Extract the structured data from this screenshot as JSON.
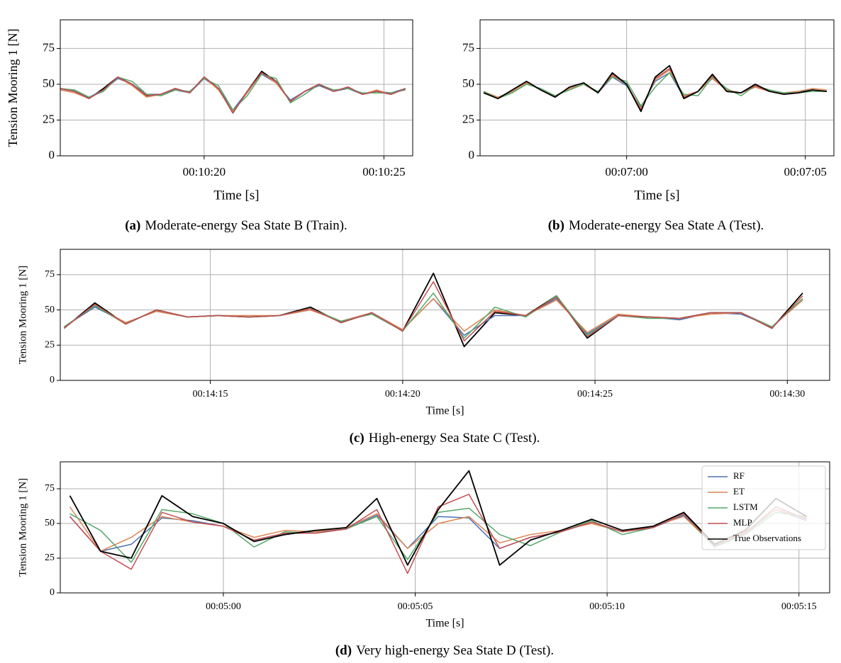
{
  "chart_data": [
    {
      "type": "line",
      "ylabel": "Tension Mooring 1 [N]",
      "xlabel": "Time [s]",
      "caption_label": "(a)",
      "caption": "Moderate-energy Sea State B (Train).",
      "xlim": [
        616,
        625.8
      ],
      "ylim": [
        0,
        95
      ],
      "xticks": [
        {
          "value": 620,
          "label": "00:10:20"
        },
        {
          "value": 625,
          "label": "00:10:25"
        }
      ],
      "yticks": [
        0,
        25,
        50,
        75
      ],
      "grid": true,
      "x": [
        616,
        616.4,
        616.8,
        617.2,
        617.6,
        618,
        618.4,
        618.8,
        619.2,
        619.6,
        620,
        620.4,
        620.8,
        621.2,
        621.6,
        622,
        622.4,
        622.8,
        623.2,
        623.6,
        624,
        624.4,
        624.8,
        625.2,
        625.6
      ],
      "series": [
        {
          "color": "#000000",
          "values": [
            47,
            45,
            40,
            47,
            55,
            50,
            42,
            43,
            47,
            44,
            55,
            47,
            30,
            45,
            59,
            52,
            38,
            45,
            50,
            45,
            48,
            43,
            45,
            43,
            47
          ]
        },
        {
          "color": "#4c72b0",
          "values": [
            47,
            45,
            41,
            46,
            54,
            50,
            43,
            43,
            46,
            44,
            54,
            47,
            32,
            45,
            57,
            51,
            39,
            45,
            49,
            45,
            47,
            43,
            45,
            44,
            47
          ]
        },
        {
          "color": "#dd8452",
          "values": [
            46,
            44,
            40,
            46,
            55,
            49,
            41,
            43,
            47,
            44,
            55,
            46,
            31,
            44,
            58,
            51,
            38,
            45,
            50,
            45,
            48,
            43,
            46,
            43,
            47
          ]
        },
        {
          "color": "#55a868",
          "values": [
            47,
            46,
            41,
            45,
            55,
            52,
            43,
            42,
            46,
            45,
            54,
            49,
            32,
            42,
            57,
            54,
            37,
            43,
            50,
            46,
            47,
            44,
            44,
            44,
            46
          ]
        },
        {
          "color": "#c44e52",
          "values": [
            47,
            45,
            40,
            46,
            55,
            50,
            42,
            43,
            47,
            44,
            55,
            47,
            30,
            45,
            58,
            52,
            38,
            45,
            50,
            45,
            48,
            43,
            45,
            43,
            47
          ]
        }
      ]
    },
    {
      "type": "line",
      "xlabel": "Time [s]",
      "caption_label": "(b)",
      "caption": "Moderate-energy Sea State A (Test).",
      "xlim": [
        415.9,
        425.8
      ],
      "ylim": [
        0,
        95
      ],
      "xticks": [
        {
          "value": 420,
          "label": "00:07:00"
        },
        {
          "value": 425,
          "label": "00:07:05"
        }
      ],
      "yticks": [
        0,
        25,
        50,
        75
      ],
      "grid": true,
      "x": [
        416,
        416.4,
        416.8,
        417.2,
        417.6,
        418,
        418.4,
        418.8,
        419.2,
        419.6,
        420,
        420.4,
        420.8,
        421.2,
        421.6,
        422,
        422.4,
        422.8,
        423.2,
        423.6,
        424,
        424.4,
        424.8,
        425.2,
        425.6
      ],
      "series": [
        {
          "color": "#4c72b0",
          "values": [
            44,
            40,
            45,
            51,
            46,
            42,
            47,
            50,
            44,
            55,
            49,
            34,
            52,
            58,
            41,
            45,
            54,
            46,
            44,
            48,
            45,
            44,
            45,
            46,
            45
          ]
        },
        {
          "color": "#dd8452",
          "values": [
            45,
            41,
            45,
            51,
            46,
            42,
            47,
            50,
            44,
            56,
            50,
            33,
            53,
            60,
            42,
            45,
            54,
            46,
            44,
            48,
            45,
            44,
            45,
            47,
            46
          ]
        },
        {
          "color": "#55a868",
          "values": [
            45,
            40,
            44,
            50,
            47,
            42,
            46,
            50,
            45,
            55,
            52,
            35,
            48,
            58,
            43,
            42,
            55,
            47,
            42,
            49,
            46,
            44,
            44,
            45,
            45
          ]
        },
        {
          "color": "#c44e52",
          "values": [
            44,
            40,
            46,
            52,
            46,
            41,
            48,
            51,
            44,
            57,
            50,
            32,
            54,
            61,
            41,
            45,
            56,
            45,
            44,
            49,
            45,
            43,
            44,
            46,
            45
          ]
        },
        {
          "color": "#000000",
          "values": [
            44,
            40,
            46,
            52,
            46,
            41,
            48,
            51,
            44,
            58,
            50,
            31,
            55,
            63,
            40,
            45,
            57,
            45,
            44,
            50,
            45,
            43,
            44,
            46,
            45
          ]
        }
      ]
    },
    {
      "type": "line",
      "ylabel": "Tension Mooring 1 [N]",
      "xlabel": "Time [s]",
      "caption_label": "(c)",
      "caption": "High-energy Sea State C (Test).",
      "xlim": [
        851.1,
        871.1
      ],
      "ylim": [
        0,
        93
      ],
      "xticks": [
        {
          "value": 855,
          "label": "00:14:15"
        },
        {
          "value": 860,
          "label": "00:14:20"
        },
        {
          "value": 865,
          "label": "00:14:25"
        },
        {
          "value": 870,
          "label": "00:14:30"
        }
      ],
      "yticks": [
        0,
        25,
        50,
        75
      ],
      "grid": true,
      "x": [
        851.2,
        852,
        852.8,
        853.6,
        854.4,
        855.2,
        856,
        856.8,
        857.6,
        858.4,
        859.2,
        860,
        860.8,
        861.6,
        862.4,
        863.2,
        864,
        864.8,
        865.6,
        866.4,
        867.2,
        868,
        868.8,
        869.6,
        870.4
      ],
      "series": [
        {
          "color": "#000000",
          "values": [
            37,
            55,
            40,
            50,
            45,
            46,
            45,
            46,
            52,
            41,
            48,
            35,
            76,
            24,
            48,
            46,
            60,
            30,
            46,
            45,
            44,
            48,
            48,
            37,
            62
          ]
        },
        {
          "color": "#4c72b0",
          "values": [
            38,
            52,
            41,
            49,
            45,
            46,
            45,
            46,
            50,
            42,
            48,
            36,
            58,
            32,
            46,
            46,
            58,
            33,
            46,
            45,
            43,
            48,
            47,
            38,
            58
          ]
        },
        {
          "color": "#dd8452",
          "values": [
            38,
            53,
            41,
            49,
            45,
            46,
            46,
            46,
            50,
            42,
            48,
            36,
            58,
            35,
            50,
            46,
            57,
            34,
            47,
            45,
            44,
            47,
            48,
            38,
            57
          ]
        },
        {
          "color": "#55a868",
          "values": [
            38,
            53,
            40,
            50,
            45,
            46,
            45,
            46,
            51,
            42,
            47,
            35,
            62,
            30,
            52,
            45,
            60,
            32,
            46,
            44,
            44,
            48,
            48,
            38,
            58
          ]
        },
        {
          "color": "#c44e52",
          "values": [
            37,
            54,
            40,
            50,
            45,
            46,
            45,
            46,
            51,
            41,
            48,
            35,
            70,
            28,
            49,
            46,
            59,
            31,
            46,
            45,
            44,
            48,
            48,
            37,
            60
          ]
        }
      ]
    },
    {
      "type": "line",
      "ylabel": "Tension Mooring 1 [N]",
      "xlabel": "Time [s]",
      "caption_label": "(d)",
      "caption": "Very high-energy Sea State D (Test).",
      "xlim": [
        295.75,
        315.8
      ],
      "ylim": [
        0,
        94.4
      ],
      "xticks": [
        {
          "value": 300,
          "label": "00:05:00"
        },
        {
          "value": 305,
          "label": "00:05:05"
        },
        {
          "value": 310,
          "label": "00:05:10"
        },
        {
          "value": 315,
          "label": "00:05:15"
        }
      ],
      "yticks": [
        0,
        25,
        50,
        75
      ],
      "grid": true,
      "legend": "upper right",
      "x": [
        296,
        296.8,
        297.6,
        298.4,
        299.2,
        300,
        300.8,
        301.6,
        302.4,
        303.2,
        304,
        304.8,
        305.6,
        306.4,
        307.2,
        308,
        308.8,
        309.6,
        310.4,
        311.2,
        312,
        312.8,
        313.6,
        314.4,
        315.2
      ],
      "series": [
        {
          "name": "RF",
          "color": "#4c72b0",
          "values": [
            55,
            30,
            35,
            54,
            52,
            48,
            38,
            43,
            44,
            46,
            56,
            32,
            55,
            54,
            32,
            40,
            44,
            51,
            44,
            47,
            56,
            33,
            43,
            60,
            52
          ]
        },
        {
          "name": "ET",
          "color": "#dd8452",
          "values": [
            62,
            30,
            40,
            55,
            51,
            48,
            40,
            45,
            44,
            47,
            57,
            32,
            50,
            55,
            36,
            42,
            45,
            50,
            44,
            48,
            55,
            34,
            44,
            60,
            54
          ]
        },
        {
          "name": "LSTM",
          "color": "#55a868",
          "values": [
            57,
            45,
            22,
            60,
            57,
            50,
            33,
            44,
            43,
            46,
            55,
            24,
            58,
            61,
            42,
            34,
            44,
            52,
            42,
            47,
            57,
            33,
            42,
            58,
            55
          ]
        },
        {
          "name": "MLP",
          "color": "#c44e52",
          "values": [
            55,
            30,
            17,
            58,
            51,
            48,
            38,
            43,
            43,
            46,
            60,
            14,
            62,
            71,
            32,
            40,
            44,
            51,
            44,
            47,
            57,
            34,
            43,
            62,
            53
          ]
        },
        {
          "name": "True Observations",
          "color": "#000000",
          "values": [
            70,
            30,
            25,
            70,
            55,
            50,
            37,
            42,
            45,
            47,
            68,
            20,
            60,
            88,
            20,
            38,
            45,
            53,
            45,
            48,
            58,
            35,
            45,
            68,
            55
          ]
        }
      ]
    }
  ]
}
